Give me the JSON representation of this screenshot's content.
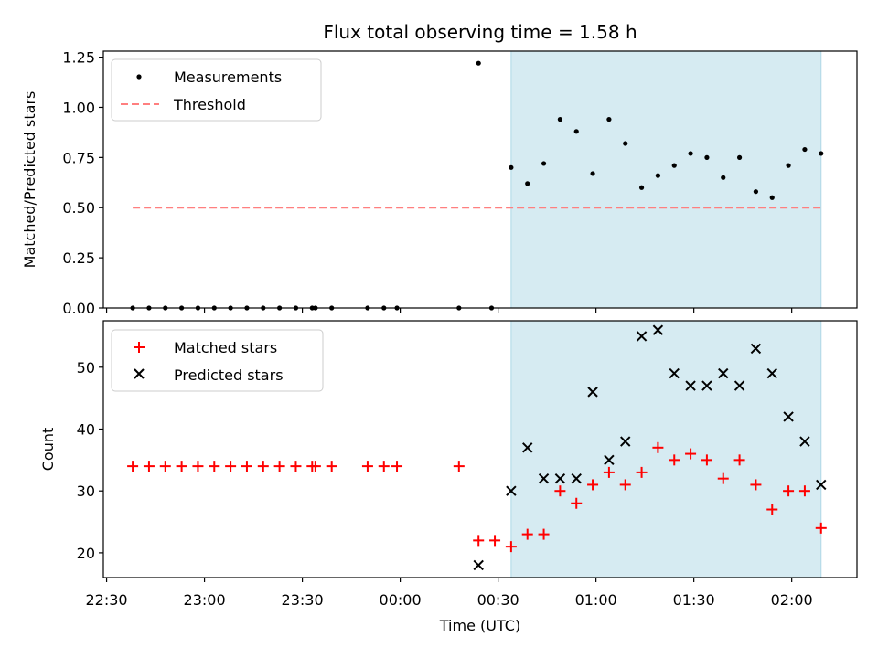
{
  "title": "Flux total observing time = 1.58 h",
  "xlabel": "Time (UTC)",
  "xticks": [
    {
      "label": "22:30",
      "t": -90
    },
    {
      "label": "23:00",
      "t": -60
    },
    {
      "label": "23:30",
      "t": -30
    },
    {
      "label": "00:00",
      "t": 0
    },
    {
      "label": "00:30",
      "t": 30
    },
    {
      "label": "01:00",
      "t": 60
    },
    {
      "label": "01:30",
      "t": 90
    },
    {
      "label": "02:00",
      "t": 120
    }
  ],
  "colors": {
    "measurement": "#000000",
    "threshold": "#ff7f7f",
    "matched": "#ff0000",
    "predicted": "#000000",
    "shade": "#add8e6"
  },
  "chart_data": [
    {
      "type": "scatter",
      "ylabel": "Matched/Predicted stars",
      "xlim": [
        -91,
        140
      ],
      "ylim": [
        0,
        1.28
      ],
      "yticks": [
        "0.00",
        "0.25",
        "0.50",
        "0.75",
        "1.00",
        "1.25"
      ],
      "grid": false,
      "legend_position": "upper-left",
      "shaded_span": {
        "start": 34,
        "end": 129
      },
      "threshold": {
        "name": "Threshold",
        "y": 0.5,
        "x_start": -82,
        "x_end": 129
      },
      "series": [
        {
          "name": "Measurements",
          "marker": "dot",
          "points": [
            [
              -82,
              0
            ],
            [
              -77,
              0
            ],
            [
              -72,
              0
            ],
            [
              -67,
              0
            ],
            [
              -62,
              0
            ],
            [
              -57,
              0
            ],
            [
              -52,
              0
            ],
            [
              -47,
              0
            ],
            [
              -42,
              0
            ],
            [
              -37,
              0
            ],
            [
              -32,
              0
            ],
            [
              -27,
              0
            ],
            [
              -26,
              0
            ],
            [
              -21,
              0
            ],
            [
              -10,
              0
            ],
            [
              -5,
              0
            ],
            [
              -1,
              0
            ],
            [
              18,
              0
            ],
            [
              28,
              0
            ],
            [
              24,
              1.22
            ],
            [
              34,
              0.7
            ],
            [
              39,
              0.62
            ],
            [
              44,
              0.72
            ],
            [
              49,
              0.94
            ],
            [
              54,
              0.88
            ],
            [
              59,
              0.67
            ],
            [
              64,
              0.94
            ],
            [
              69,
              0.82
            ],
            [
              74,
              0.6
            ],
            [
              79,
              0.66
            ],
            [
              84,
              0.71
            ],
            [
              89,
              0.77
            ],
            [
              94,
              0.75
            ],
            [
              99,
              0.65
            ],
            [
              104,
              0.75
            ],
            [
              109,
              0.58
            ],
            [
              114,
              0.55
            ],
            [
              119,
              0.71
            ],
            [
              124,
              0.79
            ],
            [
              129,
              0.77
            ]
          ]
        }
      ]
    },
    {
      "type": "scatter",
      "ylabel": "Count",
      "xlim": [
        -91,
        140
      ],
      "ylim": [
        16,
        57.5
      ],
      "yticks": [
        "20",
        "30",
        "40",
        "50"
      ],
      "grid": false,
      "legend_position": "upper-left",
      "shaded_span": {
        "start": 34,
        "end": 129
      },
      "series": [
        {
          "name": "Matched stars",
          "marker": "plus",
          "points": [
            [
              -82,
              34
            ],
            [
              -77,
              34
            ],
            [
              -72,
              34
            ],
            [
              -67,
              34
            ],
            [
              -62,
              34
            ],
            [
              -57,
              34
            ],
            [
              -52,
              34
            ],
            [
              -47,
              34
            ],
            [
              -42,
              34
            ],
            [
              -37,
              34
            ],
            [
              -32,
              34
            ],
            [
              -27,
              34
            ],
            [
              -26,
              34
            ],
            [
              -21,
              34
            ],
            [
              -10,
              34
            ],
            [
              -5,
              34
            ],
            [
              -1,
              34
            ],
            [
              18,
              34
            ],
            [
              24,
              22
            ],
            [
              29,
              22
            ],
            [
              34,
              21
            ],
            [
              39,
              23
            ],
            [
              44,
              23
            ],
            [
              49,
              30
            ],
            [
              54,
              28
            ],
            [
              59,
              31
            ],
            [
              64,
              33
            ],
            [
              69,
              31
            ],
            [
              74,
              33
            ],
            [
              79,
              37
            ],
            [
              84,
              35
            ],
            [
              89,
              36
            ],
            [
              94,
              35
            ],
            [
              99,
              32
            ],
            [
              104,
              35
            ],
            [
              109,
              31
            ],
            [
              114,
              27
            ],
            [
              119,
              30
            ],
            [
              124,
              30
            ],
            [
              129,
              24
            ]
          ]
        },
        {
          "name": "Predicted stars",
          "marker": "x",
          "points": [
            [
              24,
              18
            ],
            [
              34,
              30
            ],
            [
              39,
              37
            ],
            [
              44,
              32
            ],
            [
              49,
              32
            ],
            [
              54,
              32
            ],
            [
              59,
              46
            ],
            [
              64,
              35
            ],
            [
              69,
              38
            ],
            [
              74,
              55
            ],
            [
              79,
              56
            ],
            [
              84,
              49
            ],
            [
              89,
              47
            ],
            [
              94,
              47
            ],
            [
              99,
              49
            ],
            [
              104,
              47
            ],
            [
              109,
              53
            ],
            [
              114,
              49
            ],
            [
              119,
              42
            ],
            [
              124,
              38
            ],
            [
              129,
              31
            ]
          ]
        }
      ]
    }
  ]
}
